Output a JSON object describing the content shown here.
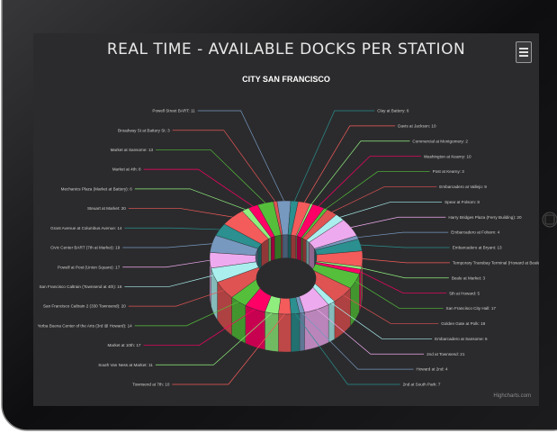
{
  "chart_data": {
    "type": "pie",
    "title": "REAL TIME - AVAILABLE DOCKS PER STATION",
    "subtitle": "CITY SAN FRANCISCO",
    "credits": "Highcharts.com",
    "series": [
      {
        "label": "Powell Street BART: 11",
        "value": 11
      },
      {
        "label": "Clay at Battery: 6",
        "value": 6
      },
      {
        "label": "Davis at Jackson: 10",
        "value": 10
      },
      {
        "label": "Commercial at Montgomery: 2",
        "value": 2
      },
      {
        "label": "Washington at Kearny: 10",
        "value": 10
      },
      {
        "label": "Post at Kearny: 3",
        "value": 3
      },
      {
        "label": "Embarcadero at Vallejo: 9",
        "value": 9
      },
      {
        "label": "Spear at Folsom: 8",
        "value": 8
      },
      {
        "label": "Harry Bridges Plaza (Ferry Building): 20",
        "value": 20
      },
      {
        "label": "Embarcadero at Folsom: 4",
        "value": 4
      },
      {
        "label": "Embarcadero at Bryant: 13",
        "value": 13
      },
      {
        "label": "Temporary Transbay Terminal (Howard at Beale): 17",
        "value": 17
      },
      {
        "label": "Beale at Market: 3",
        "value": 3
      },
      {
        "label": "5th at Howard: 5",
        "value": 5
      },
      {
        "label": "San Francisco City Hall: 17",
        "value": 17
      },
      {
        "label": "Golden Gate at Polk: 19",
        "value": 19
      },
      {
        "label": "Embarcadero at Sansome: 6",
        "value": 6
      },
      {
        "label": "2nd at Townsend: 21",
        "value": 21
      },
      {
        "label": "Howard at 2nd: 4",
        "value": 4
      },
      {
        "label": "2nd at South Park: 7",
        "value": 7
      },
      {
        "label": "Townsend at 7th: 10",
        "value": 10
      },
      {
        "label": "South Van Ness at Market: 11",
        "value": 11
      },
      {
        "label": "Market at 10th: 17",
        "value": 17
      },
      {
        "label": "Yerba Buena Center of the Arts (3rd @ Howard): 14",
        "value": 14
      },
      {
        "label": "San Francisco Caltrain 2 (330 Townsend): 20",
        "value": 20
      },
      {
        "label": "San Francisco Caltrain (Townsend at 4th): 16",
        "value": 16
      },
      {
        "label": "Powell at Post (Union Square): 17",
        "value": 17
      },
      {
        "label": "Civic Center BART (7th at Market): 19",
        "value": 19
      },
      {
        "label": "Grant Avenue at Columbus Avenue: 14",
        "value": 14
      },
      {
        "label": "Steuart at Market: 20",
        "value": 20
      },
      {
        "label": "Mechanics Plaza (Market at Battery): 6",
        "value": 6
      },
      {
        "label": "Market at 4th: 8",
        "value": 8
      },
      {
        "label": "Market at Sansome: 13",
        "value": 13
      },
      {
        "label": "Broadway St at Battery St: 3",
        "value": 3
      }
    ],
    "colors": [
      "#7798BF",
      "#2b908f",
      "#f45b5b",
      "#90ee7e",
      "#ff0066",
      "#55BF3B",
      "#DF5353",
      "#aaeeee",
      "#eeaaee"
    ],
    "inner_size_percent": 40,
    "depth_3d": true
  },
  "ui": {
    "menu_icon": "hamburger-menu-icon"
  }
}
